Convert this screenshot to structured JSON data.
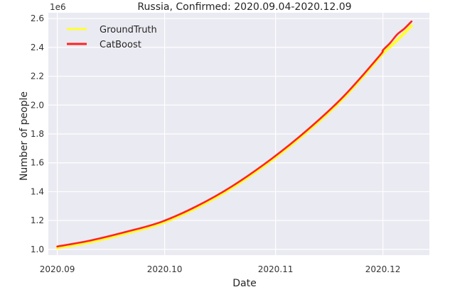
{
  "chart_data": {
    "type": "line",
    "title": "Russia, Confirmed: 2020.09.04-2020.12.09",
    "xlabel": "Date",
    "ylabel": "Number of people",
    "y_offset_label": "1e6",
    "xlim": [
      "2020-09-04",
      "2020-12-09"
    ],
    "ylim": [
      0.96,
      2.64
    ],
    "x_ticks": [
      {
        "date": "2020-09-01",
        "label": "2020.09"
      },
      {
        "date": "2020-10-01",
        "label": "2020.10"
      },
      {
        "date": "2020-11-01",
        "label": "2020.11"
      },
      {
        "date": "2020-12-01",
        "label": "2020.12"
      }
    ],
    "y_ticks": [
      {
        "value": 1.0,
        "label": "1.0"
      },
      {
        "value": 1.2,
        "label": "1.2"
      },
      {
        "value": 1.4,
        "label": "1.4"
      },
      {
        "value": 1.6,
        "label": "1.6"
      },
      {
        "value": 1.8,
        "label": "1.8"
      },
      {
        "value": 2.0,
        "label": "2.0"
      },
      {
        "value": 2.2,
        "label": "2.2"
      },
      {
        "value": 2.4,
        "label": "2.4"
      },
      {
        "value": 2.6,
        "label": "2.6"
      }
    ],
    "grid": true,
    "legend_position": "top-left",
    "series": [
      {
        "name": "GroundTruth",
        "color": "#ffff33",
        "x": [
          "2020-09-01",
          "2020-09-10",
          "2020-09-20",
          "2020-09-30",
          "2020-10-10",
          "2020-10-20",
          "2020-10-31",
          "2020-11-10",
          "2020-11-20",
          "2020-11-30",
          "2020-12-01",
          "2020-12-05",
          "2020-12-09"
        ],
        "y": [
          1.01,
          1.05,
          1.11,
          1.18,
          1.29,
          1.43,
          1.62,
          1.82,
          2.05,
          2.33,
          2.36,
          2.45,
          2.55
        ]
      },
      {
        "name": "CatBoost",
        "color": "#ff2222",
        "x": [
          "2020-09-01",
          "2020-09-10",
          "2020-09-20",
          "2020-09-30",
          "2020-10-10",
          "2020-10-20",
          "2020-10-31",
          "2020-11-10",
          "2020-11-20",
          "2020-11-30",
          "2020-12-01",
          "2020-12-03",
          "2020-12-05",
          "2020-12-07",
          "2020-12-09"
        ],
        "y": [
          1.02,
          1.06,
          1.12,
          1.19,
          1.3,
          1.44,
          1.63,
          1.83,
          2.06,
          2.34,
          2.38,
          2.43,
          2.49,
          2.53,
          2.58
        ]
      }
    ]
  }
}
